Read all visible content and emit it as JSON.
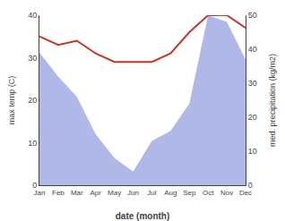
{
  "chart_data": {
    "type": "line",
    "categories": [
      "Jan",
      "Feb",
      "Mar",
      "Apr",
      "May",
      "Jun",
      "Jul",
      "Aug",
      "Sep",
      "Oct",
      "Nov",
      "Dec"
    ],
    "xlabel": "date (month)",
    "ylabel": "max temp (C)",
    "y2label": "med. precipitation (kg/m2)",
    "series": [
      {
        "type": "area",
        "color": "#b0b8e8",
        "axis": "y2",
        "values": [
          39,
          32,
          26,
          15,
          8,
          4,
          13,
          16,
          24,
          50,
          48,
          37
        ]
      },
      {
        "type": "line",
        "color": "#c0392b",
        "values": [
          35,
          33,
          34,
          31,
          29,
          29,
          29,
          31,
          36,
          40,
          40,
          37
        ]
      }
    ],
    "ylim": [
      0,
      40
    ],
    "yticks": [
      0,
      10,
      20,
      30,
      40
    ],
    "y2lim": [
      0,
      50
    ],
    "y2ticks": [
      0,
      10,
      20,
      30,
      40,
      50
    ],
    "grid": false
  }
}
